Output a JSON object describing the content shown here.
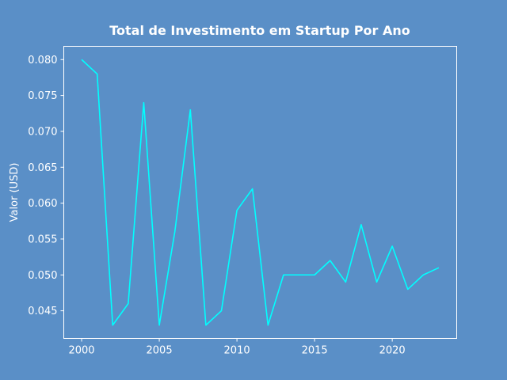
{
  "chart_data": {
    "type": "line",
    "title": "Total de Investimento em Startup Por Ano",
    "xlabel": "",
    "ylabel": "Valor (USD)",
    "x": [
      2000,
      2001,
      2002,
      2003,
      2004,
      2005,
      2006,
      2007,
      2008,
      2009,
      2010,
      2011,
      2012,
      2013,
      2014,
      2015,
      2016,
      2017,
      2018,
      2019,
      2020,
      2021,
      2022,
      2023
    ],
    "series": [
      {
        "values": [
          0.08,
          0.078,
          0.043,
          0.046,
          0.074,
          0.043,
          0.056,
          0.073,
          0.043,
          0.045,
          0.059,
          0.062,
          0.043,
          0.05,
          0.05,
          0.05,
          0.052,
          0.049,
          0.057,
          0.049,
          0.054,
          0.048,
          0.05,
          0.051
        ]
      }
    ],
    "xlim": [
      1998.85,
      2024.15
    ],
    "ylim": [
      0.04115,
      0.08185
    ],
    "xticks": [
      2000,
      2005,
      2010,
      2015,
      2020
    ],
    "xtick_labels": [
      "2000",
      "2005",
      "2010",
      "2015",
      "2020"
    ],
    "yticks": [
      0.045,
      0.05,
      0.055,
      0.06,
      0.065,
      0.07,
      0.075,
      0.08
    ],
    "ytick_labels": [
      "0.045",
      "0.050",
      "0.055",
      "0.060",
      "0.065",
      "0.070",
      "0.075",
      "0.080"
    ],
    "grid": false,
    "colors": {
      "background": "#5a8fc7",
      "line": "#00ffff",
      "axes": "#ffffff",
      "text": "#ffffff"
    }
  }
}
